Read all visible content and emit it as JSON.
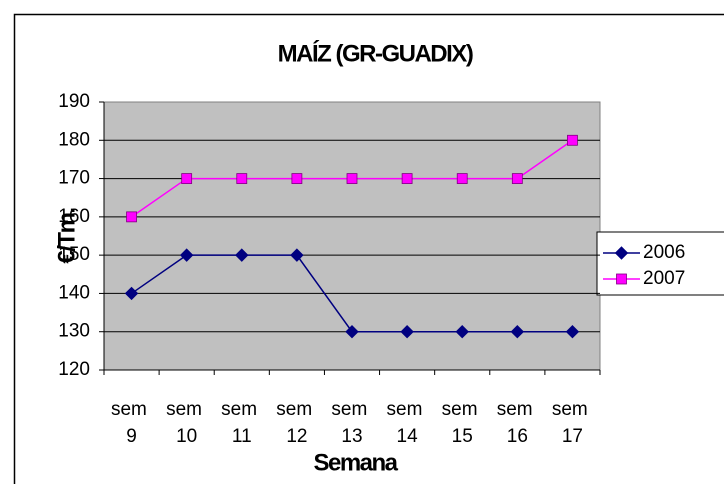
{
  "chart_data": {
    "type": "line",
    "title": "MAÍZ (GR-GUADIX)",
    "x_label": "Semana",
    "y_label": "€/Tm.",
    "categories": [
      "sem 9",
      "sem 10",
      "sem 11",
      "sem 12",
      "sem 13",
      "sem 14",
      "sem 15",
      "sem 16",
      "sem 17"
    ],
    "series": [
      {
        "name": "2006",
        "color": "#000080",
        "marker": "diamond",
        "values": [
          140,
          150,
          150,
          150,
          130,
          130,
          130,
          130,
          130
        ]
      },
      {
        "name": "2007",
        "color": "#ff00ff",
        "marker": "square",
        "values": [
          160,
          170,
          170,
          170,
          170,
          170,
          170,
          170,
          180
        ]
      }
    ],
    "ylim": [
      120,
      190
    ],
    "yticks": [
      120,
      130,
      140,
      150,
      160,
      170,
      180,
      190
    ],
    "grid": true,
    "legend": "right"
  }
}
